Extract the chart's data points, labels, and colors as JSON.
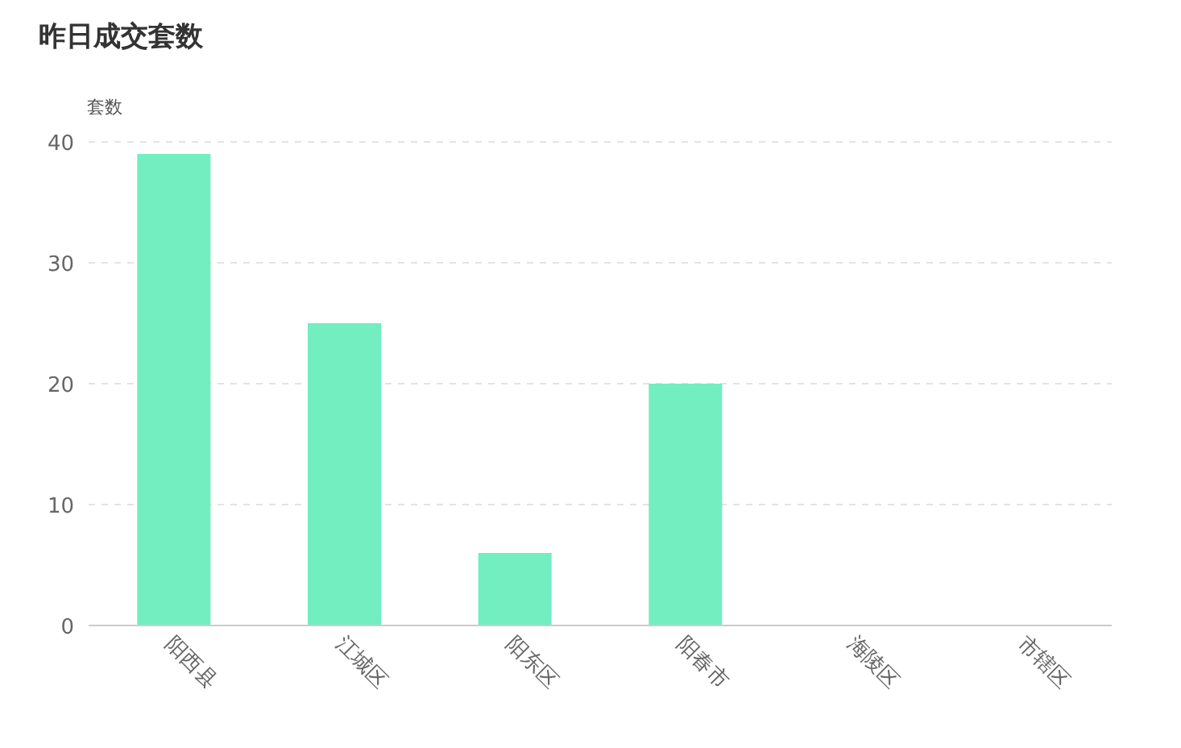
{
  "chart_data": {
    "type": "bar",
    "title": "昨日成交套数",
    "ylabel": "套数",
    "categories": [
      "阳西县",
      "江城区",
      "阳东区",
      "阳春市",
      "海陵区",
      "市辖区"
    ],
    "values": [
      39,
      25,
      6,
      20,
      0,
      0
    ],
    "color": "#72eec0",
    "ylim": [
      0,
      40
    ],
    "yticks": [
      0,
      10,
      20,
      30,
      40
    ],
    "grid": "y"
  }
}
